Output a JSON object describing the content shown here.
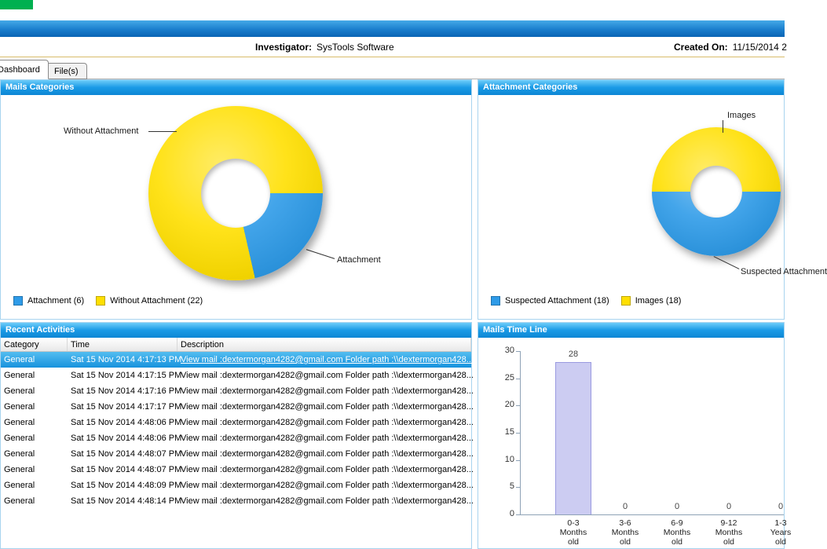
{
  "header": {
    "investigator_label": "Investigator:",
    "investigator_value": "SysTools Software",
    "created_on_label": "Created On:",
    "created_on_value": "11/15/2014 2"
  },
  "tabs": [
    {
      "label": "Dashboard",
      "active": true
    },
    {
      "label": "File(s)",
      "active": false
    }
  ],
  "chart_data": [
    {
      "type": "pie",
      "title": "Mails Categories",
      "labels": [
        "Attachment",
        "Without Attachment"
      ],
      "values": [
        6,
        22
      ],
      "colors": [
        "#2e9be8",
        "#ffdf00"
      ],
      "legend": [
        {
          "label": "Attachment (6)",
          "color": "#2e9be8"
        },
        {
          "label": "Without Attachment (22)",
          "color": "#ffdf00"
        }
      ],
      "callouts": {
        "left": "Without Attachment",
        "right": "Attachment"
      },
      "legend_position": "bottom-left"
    },
    {
      "type": "pie",
      "title": "Attachment Categories",
      "labels": [
        "Suspected Attachment",
        "Images"
      ],
      "values": [
        18,
        18
      ],
      "colors": [
        "#2e9be8",
        "#ffdf00"
      ],
      "legend": [
        {
          "label": "Suspected Attachment (18)",
          "color": "#2e9be8"
        },
        {
          "label": "Images (18)",
          "color": "#ffdf00"
        }
      ],
      "callouts": {
        "top": "Images",
        "bottom": "Suspected Attachment"
      },
      "legend_position": "bottom-left"
    },
    {
      "type": "bar",
      "title": "Mails Time Line",
      "categories": [
        "0-3 Months old",
        "3-6 Months old",
        "6-9 Months old",
        "9-12 Months old",
        "1-3 Years old"
      ],
      "values": [
        28,
        0,
        0,
        0,
        0
      ],
      "ylim": [
        0,
        30
      ],
      "yticks": [
        0,
        5,
        10,
        15,
        20,
        25,
        30
      ],
      "bar_color": "#ccccf2",
      "grid": false
    }
  ],
  "recent_activities": {
    "title": "Recent Activities",
    "columns": [
      "Category",
      "Time",
      "Description"
    ],
    "rows": [
      {
        "category": "General",
        "time": "Sat 15 Nov 2014 4:17:13 PM",
        "description": "View mail :dextermorgan4282@gmail.com Folder path :\\\\dextermorgan428...",
        "selected": true
      },
      {
        "category": "General",
        "time": "Sat 15 Nov 2014 4:17:15 PM",
        "description": "View mail :dextermorgan4282@gmail.com Folder path :\\\\dextermorgan428...",
        "selected": false
      },
      {
        "category": "General",
        "time": "Sat 15 Nov 2014 4:17:16 PM",
        "description": "View mail :dextermorgan4282@gmail.com Folder path :\\\\dextermorgan428...",
        "selected": false
      },
      {
        "category": "General",
        "time": "Sat 15 Nov 2014 4:17:17 PM",
        "description": "View mail :dextermorgan4282@gmail.com Folder path :\\\\dextermorgan428...",
        "selected": false
      },
      {
        "category": "General",
        "time": "Sat 15 Nov 2014 4:48:06 PM",
        "description": "View mail :dextermorgan4282@gmail.com Folder path :\\\\dextermorgan428...",
        "selected": false
      },
      {
        "category": "General",
        "time": "Sat 15 Nov 2014 4:48:06 PM",
        "description": "View mail :dextermorgan4282@gmail.com Folder path :\\\\dextermorgan428...",
        "selected": false
      },
      {
        "category": "General",
        "time": "Sat 15 Nov 2014 4:48:07 PM",
        "description": "View mail :dextermorgan4282@gmail.com Folder path :\\\\dextermorgan428...",
        "selected": false
      },
      {
        "category": "General",
        "time": "Sat 15 Nov 2014 4:48:07 PM",
        "description": "View mail :dextermorgan4282@gmail.com Folder path :\\\\dextermorgan428...",
        "selected": false
      },
      {
        "category": "General",
        "time": "Sat 15 Nov 2014 4:48:09 PM",
        "description": "View mail :dextermorgan4282@gmail.com Folder path :\\\\dextermorgan428...",
        "selected": false
      },
      {
        "category": "General",
        "time": "Sat 15 Nov 2014 4:48:14 PM",
        "description": "View mail :dextermorgan4282@gmail.com Folder path :\\\\dextermorgan428...",
        "selected": false
      }
    ]
  }
}
